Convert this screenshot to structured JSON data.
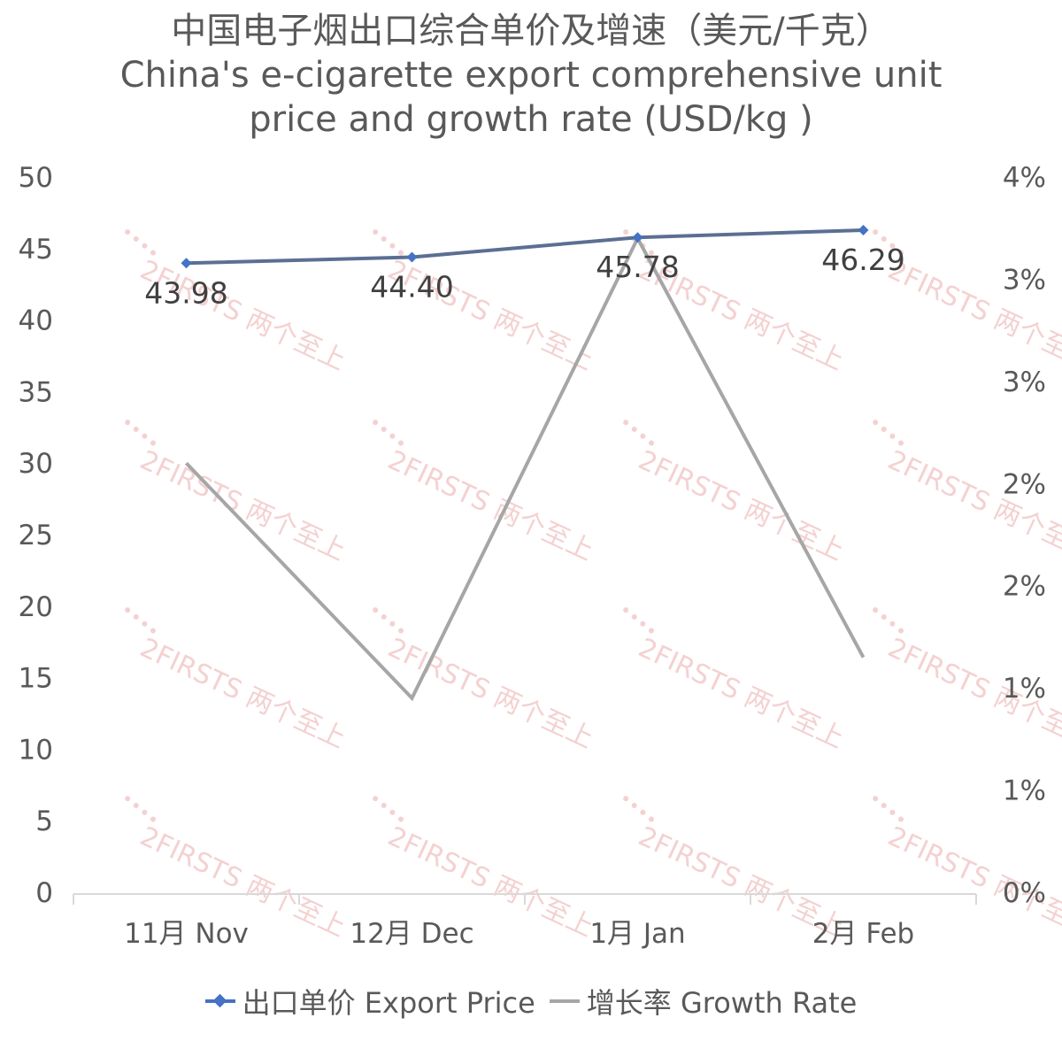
{
  "title_cn": "中国电子烟出口综合单价及增速（美元/千克）",
  "title_en_line1": "China's e-cigarette export comprehensive unit",
  "title_en_line2": "price and growth rate (USD/kg )",
  "colors": {
    "price_line": "#5b6f93",
    "price_marker": "#4472c4",
    "growth_line": "#a6a6a6",
    "axis": "#d9d9d9",
    "watermark": "#f3c9c9"
  },
  "watermark_text": "2FIRSTS 两个至上",
  "chart_data": {
    "type": "line",
    "categories": [
      "11月 Nov",
      "12月 Dec",
      "1月 Jan",
      "2月 Feb"
    ],
    "series": [
      {
        "name": "出口单价 Export Price",
        "axis": "left",
        "values": [
          43.98,
          44.4,
          45.78,
          46.29
        ],
        "data_labels": [
          "43.98",
          "44.40",
          "45.78",
          "46.29"
        ],
        "marker": "diamond"
      },
      {
        "name": "增长率 Growth Rate",
        "axis": "right",
        "values": [
          2.1,
          0.95,
          3.2,
          1.15
        ],
        "marker": "none"
      }
    ],
    "y_left": {
      "min": 0,
      "max": 50,
      "ticks": [
        "0",
        "5",
        "10",
        "15",
        "20",
        "25",
        "30",
        "35",
        "40",
        "45",
        "50"
      ]
    },
    "y_right": {
      "min": 0,
      "max": 3.5,
      "ticks": [
        "0%",
        "1%",
        "1%",
        "2%",
        "2%",
        "3%",
        "3%",
        "4%"
      ]
    },
    "grid": false,
    "legend_position": "bottom"
  }
}
